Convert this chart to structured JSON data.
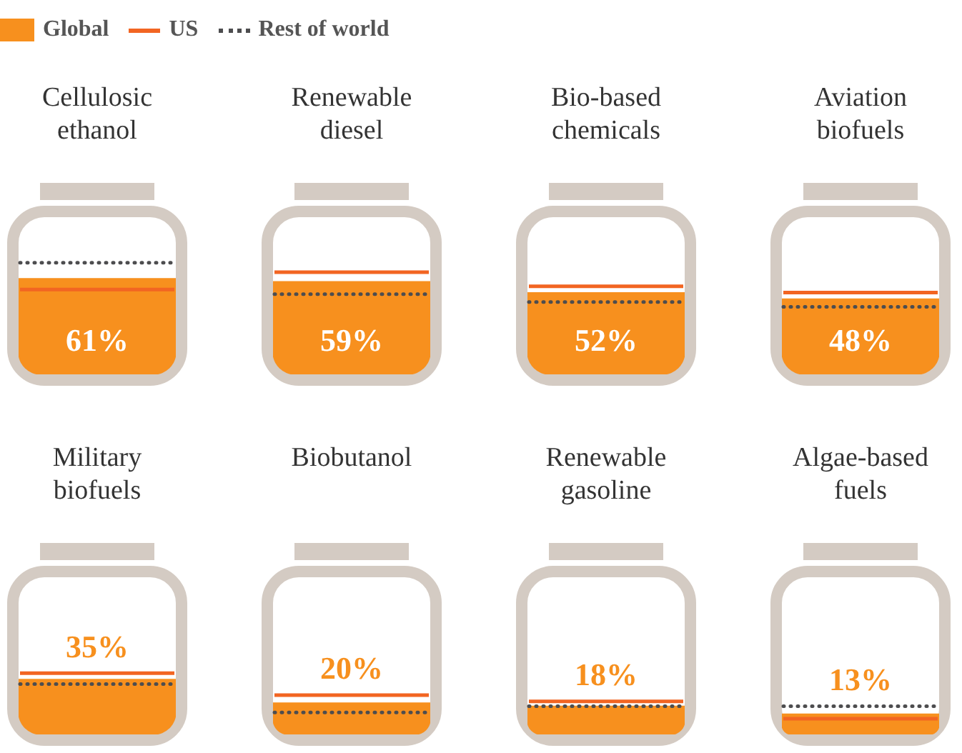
{
  "chart_data": [
    {
      "type": "bar",
      "categories": [
        "Cellulosic ethanol"
      ],
      "ylim": [
        0,
        100
      ],
      "tick_labels": "x",
      "legend": "top right",
      "series": [
        {
          "name": "Global",
          "color": "#f7901e",
          "values": [
            61
          ],
          "value_labels": [
            "61%"
          ]
        }
      ],
      "ref_lines": [
        {
          "axis": "y",
          "value": 54,
          "label": "US",
          "color": "#f26522",
          "line_style": "solid"
        },
        {
          "axis": "y",
          "value": 71,
          "label": "Rest of world",
          "color": "#4d4d4f",
          "line_style": "dotted"
        }
      ]
    },
    {
      "type": "bar",
      "categories": [
        "Renewable diesel"
      ],
      "ylim": [
        0,
        100
      ],
      "tick_labels": "x",
      "series": [
        {
          "color": "#f7901e",
          "values": [
            59
          ],
          "value_labels": [
            "59%"
          ]
        }
      ],
      "ref_lines": [
        {
          "axis": "y",
          "value": 65,
          "color": "#f26522",
          "line_style": "solid"
        },
        {
          "axis": "y",
          "value": 51,
          "color": "#4d4d4f",
          "line_style": "dotted"
        }
      ]
    },
    {
      "type": "bar",
      "categories": [
        "Bio-based chemicals"
      ],
      "ylim": [
        0,
        100
      ],
      "tick_labels": "x",
      "series": [
        {
          "color": "#f7901e",
          "values": [
            52
          ],
          "value_labels": [
            "52%"
          ]
        }
      ],
      "ref_lines": [
        {
          "axis": "y",
          "value": 56,
          "color": "#f26522",
          "line_style": "solid"
        },
        {
          "axis": "y",
          "value": 46,
          "color": "#4d4d4f",
          "line_style": "dotted"
        }
      ]
    },
    {
      "type": "bar",
      "categories": [
        "Aviation biofuels"
      ],
      "ylim": [
        0,
        100
      ],
      "tick_labels": "x",
      "series": [
        {
          "color": "#f7901e",
          "values": [
            48
          ],
          "value_labels": [
            "48%"
          ]
        }
      ],
      "ref_lines": [
        {
          "axis": "y",
          "value": 52,
          "color": "#f26522",
          "line_style": "solid"
        },
        {
          "axis": "y",
          "value": 43,
          "color": "#4d4d4f",
          "line_style": "dotted"
        }
      ]
    },
    {
      "type": "bar",
      "categories": [
        "Military biofuels"
      ],
      "ylim": [
        0,
        100
      ],
      "tick_labels": "x",
      "series": [
        {
          "color": "#f7901e",
          "values": [
            35
          ],
          "value_labels": [
            "35%"
          ]
        }
      ],
      "ref_lines": [
        {
          "axis": "y",
          "value": 39,
          "color": "#f26522",
          "line_style": "solid"
        },
        {
          "axis": "y",
          "value": 32,
          "color": "#4d4d4f",
          "line_style": "dotted"
        }
      ]
    },
    {
      "type": "bar",
      "categories": [
        "Biobutanol"
      ],
      "ylim": [
        0,
        100
      ],
      "tick_labels": "x",
      "series": [
        {
          "color": "#f7901e",
          "values": [
            20
          ],
          "value_labels": [
            "20%"
          ]
        }
      ],
      "ref_lines": [
        {
          "axis": "y",
          "value": 25,
          "color": "#f26522",
          "line_style": "solid"
        },
        {
          "axis": "y",
          "value": 14,
          "color": "#4d4d4f",
          "line_style": "dotted"
        }
      ]
    },
    {
      "type": "bar",
      "categories": [
        "Renewable gasoline"
      ],
      "ylim": [
        0,
        100
      ],
      "tick_labels": "x",
      "series": [
        {
          "color": "#f7901e",
          "values": [
            18
          ],
          "value_labels": [
            "18%"
          ]
        }
      ],
      "ref_lines": [
        {
          "axis": "y",
          "value": 21,
          "color": "#f26522",
          "line_style": "solid"
        },
        {
          "axis": "y",
          "value": 18,
          "color": "#4d4d4f",
          "line_style": "dotted"
        }
      ]
    },
    {
      "type": "bar",
      "categories": [
        "Algae-based fuels"
      ],
      "ylim": [
        0,
        100
      ],
      "tick_labels": "x",
      "series": [
        {
          "color": "#f7901e",
          "values": [
            13
          ],
          "value_labels": [
            "13%"
          ]
        }
      ],
      "ref_lines": [
        {
          "axis": "y",
          "value": 10,
          "color": "#f26522",
          "line_style": "solid"
        },
        {
          "axis": "y",
          "value": 18,
          "color": "#4d4d4f",
          "line_style": "dotted"
        }
      ]
    }
  ]
}
